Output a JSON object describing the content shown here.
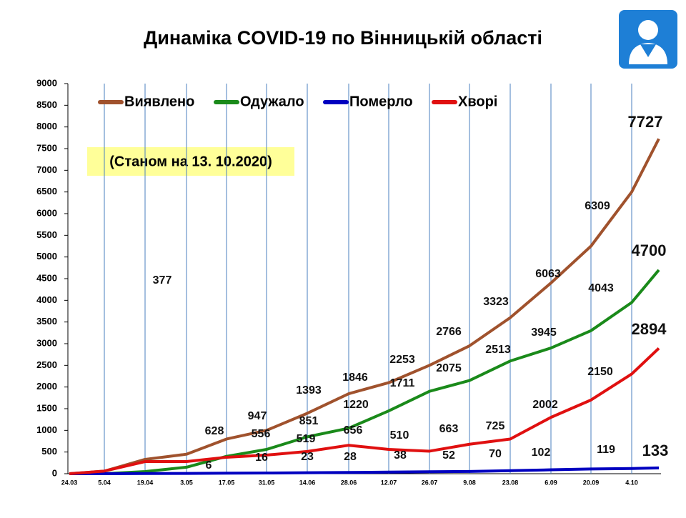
{
  "chart_data": {
    "type": "line",
    "title": "Динаміка COVID-19 по Вінницькій області",
    "note": "(Станом на 13. 10.2020)",
    "categories": [
      "24.03",
      "5.04",
      "19.04",
      "3.05",
      "17.05",
      "31.05",
      "14.06",
      "28.06",
      "12.07",
      "26.07",
      "9.08",
      "23.08",
      "6.09",
      "20.09",
      "4.10",
      null
    ],
    "ylim": [
      0,
      9000
    ],
    "yticks": [
      0,
      500,
      1000,
      1500,
      2000,
      2500,
      3000,
      3500,
      4000,
      4500,
      5000,
      5500,
      6000,
      6500,
      7000,
      7500,
      8000,
      8500,
      9000
    ],
    "grid": "x",
    "series": [
      {
        "name": "Виявлено",
        "color": "#a0522d",
        "values": [
          0,
          60,
          330,
          450,
          800,
          1000,
          1393,
          1846,
          2100,
          2500,
          2950,
          3600,
          4400,
          5250,
          6500,
          7727
        ]
      },
      {
        "name": "Одужало",
        "color": "#1a8a1a",
        "values": [
          0,
          0,
          50,
          150,
          400,
          560,
          851,
          1050,
          1450,
          1900,
          2150,
          2600,
          2900,
          3300,
          3950,
          4700
        ]
      },
      {
        "name": "Померло",
        "color": "#0000c0",
        "values": [
          0,
          1,
          4,
          6,
          12,
          16,
          23,
          28,
          38,
          45,
          52,
          70,
          90,
          110,
          119,
          133
        ]
      },
      {
        "name": "Хворі",
        "color": "#e01010",
        "values": [
          0,
          60,
          280,
          280,
          380,
          430,
          513,
          656,
          560,
          520,
          680,
          800,
          1300,
          1700,
          2300,
          2894
        ]
      }
    ],
    "annotations": [
      "377",
      "628",
      "947",
      "1393",
      "1846",
      "2253",
      "2766",
      "3323",
      "6063",
      "6309",
      "7727",
      "556",
      "851",
      "1220",
      "1711",
      "2075",
      "2513",
      "3945",
      "4043",
      "4700",
      "519",
      "656",
      "510",
      "663",
      "725",
      "2002",
      "2150",
      "2894",
      "6",
      "16",
      "23",
      "28",
      "38",
      "52",
      "70",
      "102",
      "119",
      "133"
    ]
  }
}
